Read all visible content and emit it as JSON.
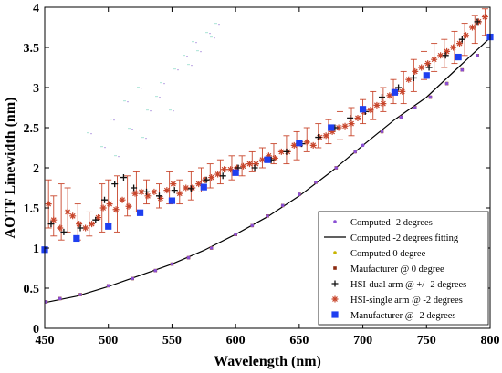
{
  "chart_data": {
    "type": "scatter",
    "xlabel": "Wavelength (nm)",
    "ylabel": "AOTF Linewidth (nm)",
    "xlim": [
      450,
      800
    ],
    "ylim": [
      0,
      4
    ],
    "x_ticks": [
      "450",
      "500",
      "550",
      "600",
      "650",
      "700",
      "750",
      "800"
    ],
    "y_ticks": [
      "0",
      "0.5",
      "1",
      "1.5",
      "2",
      "2.5",
      "3",
      "3.5",
      "4"
    ],
    "grid": false,
    "legend_position": "bottom-right",
    "series": [
      {
        "name": "Computed -2 degrees",
        "marker": "dot",
        "color": "#8a4fd4",
        "points": [
          [
            451,
            0.33
          ],
          [
            462,
            0.37
          ],
          [
            478,
            0.42
          ],
          [
            500,
            0.53
          ],
          [
            519,
            0.62
          ],
          [
            537,
            0.72
          ],
          [
            550,
            0.8
          ],
          [
            563,
            0.88
          ],
          [
            581,
            1.0
          ],
          [
            600,
            1.17
          ],
          [
            613,
            1.28
          ],
          [
            625,
            1.4
          ],
          [
            637,
            1.53
          ],
          [
            650,
            1.67
          ],
          [
            663,
            1.82
          ],
          [
            679,
            2.0
          ],
          [
            694,
            2.2
          ],
          [
            700,
            2.28
          ],
          [
            715,
            2.45
          ],
          [
            730,
            2.63
          ],
          [
            741,
            2.75
          ],
          [
            753,
            2.88
          ],
          [
            766,
            3.05
          ],
          [
            778,
            3.22
          ],
          [
            790,
            3.4
          ],
          [
            800,
            3.62
          ]
        ]
      },
      {
        "name": "Computed -2 degrees fitting",
        "marker": "line",
        "color": "#000000",
        "points": [
          [
            450,
            0.32
          ],
          [
            475,
            0.4
          ],
          [
            500,
            0.52
          ],
          [
            525,
            0.66
          ],
          [
            550,
            0.8
          ],
          [
            575,
            0.97
          ],
          [
            600,
            1.17
          ],
          [
            625,
            1.39
          ],
          [
            650,
            1.65
          ],
          [
            675,
            1.95
          ],
          [
            700,
            2.28
          ],
          [
            725,
            2.6
          ],
          [
            750,
            2.88
          ],
          [
            775,
            3.25
          ],
          [
            800,
            3.62
          ]
        ]
      },
      {
        "name": "Computed 0 degree",
        "marker": "dot",
        "color": "#c8b400",
        "points": [
          [
            451,
            0.33
          ],
          [
            478,
            0.42
          ],
          [
            519,
            0.62
          ],
          [
            550,
            0.8
          ],
          [
            581,
            1.0
          ],
          [
            613,
            1.28
          ],
          [
            637,
            1.53
          ],
          [
            663,
            1.82
          ],
          [
            694,
            2.2
          ],
          [
            715,
            2.45
          ],
          [
            741,
            2.75
          ],
          [
            766,
            3.05
          ],
          [
            790,
            3.4
          ]
        ]
      },
      {
        "name": "Maufacturer @ 0 degree",
        "marker": "square-small",
        "color": "#8b2a10",
        "points": [
          [
            451,
            0.33
          ],
          [
            462,
            0.37
          ],
          [
            478,
            0.42
          ],
          [
            500,
            0.53
          ],
          [
            519,
            0.62
          ],
          [
            537,
            0.72
          ],
          [
            550,
            0.8
          ],
          [
            563,
            0.88
          ],
          [
            581,
            1.0
          ],
          [
            600,
            1.17
          ],
          [
            613,
            1.28
          ],
          [
            625,
            1.4
          ],
          [
            637,
            1.53
          ],
          [
            650,
            1.67
          ],
          [
            663,
            1.82
          ],
          [
            679,
            2.0
          ],
          [
            694,
            2.2
          ],
          [
            715,
            2.45
          ],
          [
            730,
            2.63
          ],
          [
            741,
            2.75
          ],
          [
            753,
            2.88
          ],
          [
            766,
            3.05
          ],
          [
            778,
            3.22
          ],
          [
            790,
            3.4
          ]
        ]
      },
      {
        "name": "HSI-dual arm @ +/- 2 degrees",
        "marker": "plus",
        "color": "#111111",
        "points": [
          [
            455,
            1.3
          ],
          [
            465,
            1.2
          ],
          [
            478,
            1.25
          ],
          [
            490,
            1.35
          ],
          [
            497,
            1.6
          ],
          [
            505,
            1.8
          ],
          [
            512,
            1.88
          ],
          [
            520,
            1.75
          ],
          [
            530,
            1.7
          ],
          [
            540,
            1.65
          ],
          [
            552,
            1.72
          ],
          [
            565,
            1.74
          ],
          [
            577,
            1.85
          ],
          [
            590,
            1.9
          ],
          [
            602,
            2.0
          ],
          [
            615,
            2.0
          ],
          [
            628,
            2.1
          ],
          [
            640,
            2.2
          ],
          [
            652,
            2.3
          ],
          [
            665,
            2.38
          ],
          [
            678,
            2.5
          ],
          [
            690,
            2.62
          ],
          [
            702,
            2.7
          ],
          [
            715,
            2.88
          ],
          [
            728,
            3.0
          ],
          [
            740,
            3.12
          ],
          [
            752,
            3.25
          ],
          [
            765,
            3.4
          ],
          [
            778,
            3.6
          ],
          [
            790,
            3.82
          ]
        ]
      },
      {
        "name": "HSI-single arm @ -2 degrees",
        "marker": "star",
        "color": "#c8462c",
        "points": [
          [
            453,
            1.55
          ],
          [
            457,
            1.35
          ],
          [
            462,
            1.25
          ],
          [
            468,
            1.45
          ],
          [
            472,
            1.4
          ],
          [
            477,
            1.3
          ],
          [
            482,
            1.25
          ],
          [
            487,
            1.3
          ],
          [
            492,
            1.38
          ],
          [
            496,
            1.5
          ],
          [
            501,
            1.55
          ],
          [
            506,
            1.48
          ],
          [
            511,
            1.6
          ],
          [
            516,
            1.52
          ],
          [
            521,
            1.68
          ],
          [
            526,
            1.7
          ],
          [
            531,
            1.65
          ],
          [
            536,
            1.7
          ],
          [
            541,
            1.62
          ],
          [
            546,
            1.72
          ],
          [
            551,
            1.8
          ],
          [
            556,
            1.68
          ],
          [
            561,
            1.75
          ],
          [
            566,
            1.75
          ],
          [
            571,
            1.8
          ],
          [
            576,
            1.85
          ],
          [
            581,
            1.88
          ],
          [
            586,
            1.92
          ],
          [
            591,
            1.98
          ],
          [
            596,
            1.98
          ],
          [
            601,
            2.0
          ],
          [
            606,
            2.02
          ],
          [
            611,
            2.05
          ],
          [
            616,
            2.05
          ],
          [
            621,
            2.1
          ],
          [
            626,
            2.15
          ],
          [
            631,
            2.12
          ],
          [
            636,
            2.2
          ],
          [
            641,
            2.2
          ],
          [
            646,
            2.28
          ],
          [
            651,
            2.3
          ],
          [
            656,
            2.32
          ],
          [
            661,
            2.28
          ],
          [
            666,
            2.38
          ],
          [
            671,
            2.4
          ],
          [
            676,
            2.45
          ],
          [
            681,
            2.5
          ],
          [
            686,
            2.52
          ],
          [
            691,
            2.55
          ],
          [
            696,
            2.62
          ],
          [
            701,
            2.7
          ],
          [
            706,
            2.72
          ],
          [
            711,
            2.78
          ],
          [
            716,
            2.8
          ],
          [
            721,
            2.9
          ],
          [
            726,
            2.95
          ],
          [
            731,
            2.95
          ],
          [
            736,
            3.1
          ],
          [
            741,
            3.2
          ],
          [
            746,
            3.25
          ],
          [
            751,
            3.3
          ],
          [
            756,
            3.35
          ],
          [
            761,
            3.4
          ],
          [
            766,
            3.45
          ],
          [
            771,
            3.5
          ],
          [
            776,
            3.55
          ],
          [
            781,
            3.65
          ],
          [
            786,
            3.75
          ],
          [
            791,
            3.82
          ],
          [
            796,
            3.88
          ]
        ],
        "error_bar_sample": [
          [
            453,
            1.25,
            1.85
          ],
          [
            457,
            1.15,
            1.65
          ],
          [
            463,
            1.1,
            1.8
          ],
          [
            468,
            1.2,
            1.75
          ],
          [
            476,
            1.1,
            1.55
          ],
          [
            485,
            1.15,
            1.45
          ],
          [
            495,
            1.2,
            1.8
          ],
          [
            500,
            1.3,
            1.85
          ],
          [
            507,
            1.2,
            1.9
          ],
          [
            515,
            1.4,
            1.9
          ],
          [
            522,
            1.45,
            1.95
          ],
          [
            530,
            1.55,
            1.85
          ],
          [
            540,
            1.5,
            1.8
          ],
          [
            548,
            1.55,
            1.95
          ],
          [
            556,
            1.55,
            1.85
          ],
          [
            565,
            1.6,
            1.95
          ],
          [
            573,
            1.7,
            2.0
          ],
          [
            580,
            1.75,
            2.05
          ],
          [
            588,
            1.8,
            2.1
          ],
          [
            597,
            1.85,
            2.15
          ],
          [
            605,
            1.9,
            2.15
          ],
          [
            613,
            1.95,
            2.2
          ],
          [
            621,
            2.0,
            2.25
          ],
          [
            630,
            2.05,
            2.3
          ],
          [
            640,
            2.05,
            2.4
          ],
          [
            648,
            2.1,
            2.45
          ],
          [
            656,
            2.2,
            2.5
          ],
          [
            665,
            2.25,
            2.55
          ],
          [
            673,
            2.3,
            2.6
          ],
          [
            682,
            2.35,
            2.7
          ],
          [
            691,
            2.4,
            2.75
          ],
          [
            700,
            2.55,
            2.85
          ],
          [
            708,
            2.6,
            2.95
          ],
          [
            716,
            2.7,
            3.0
          ],
          [
            724,
            2.8,
            3.1
          ],
          [
            732,
            2.8,
            3.2
          ],
          [
            740,
            2.95,
            3.35
          ],
          [
            748,
            3.1,
            3.45
          ],
          [
            756,
            3.2,
            3.55
          ],
          [
            764,
            3.25,
            3.6
          ],
          [
            772,
            3.3,
            3.7
          ],
          [
            780,
            3.4,
            3.8
          ],
          [
            788,
            3.55,
            3.9
          ],
          [
            796,
            3.65,
            3.98
          ]
        ]
      },
      {
        "name": "Manufacturer @ -2 degrees",
        "marker": "square",
        "color": "#1f3ff0",
        "points": [
          [
            450,
            0.98
          ],
          [
            475,
            1.12
          ],
          [
            500,
            1.27
          ],
          [
            525,
            1.44
          ],
          [
            550,
            1.59
          ],
          [
            575,
            1.76
          ],
          [
            600,
            1.94
          ],
          [
            625,
            2.1
          ],
          [
            650,
            2.31
          ],
          [
            675,
            2.5
          ],
          [
            700,
            2.73
          ],
          [
            725,
            2.94
          ],
          [
            750,
            3.15
          ],
          [
            775,
            3.38
          ],
          [
            800,
            3.63
          ]
        ]
      }
    ]
  }
}
